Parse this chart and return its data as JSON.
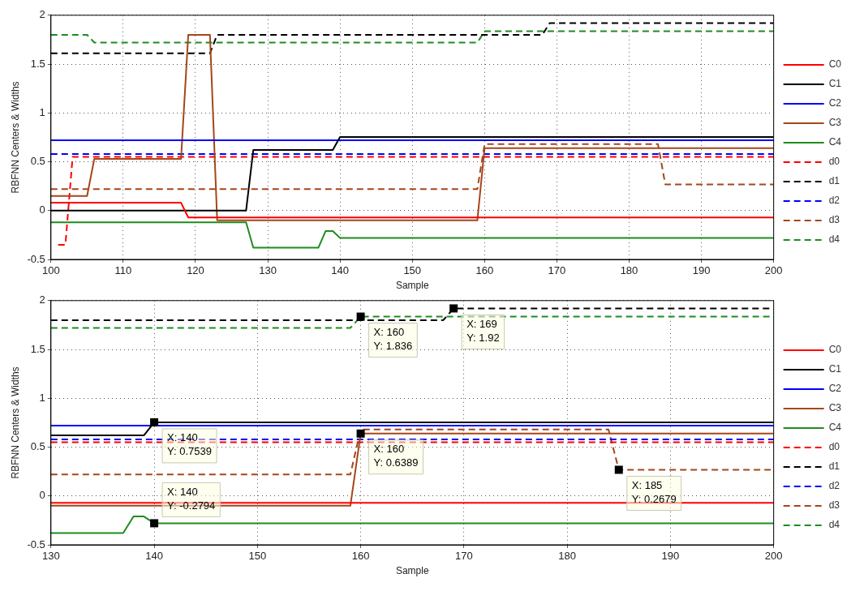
{
  "chart_data": [
    {
      "type": "line",
      "xlabel": "Sample",
      "ylabel": "RBFNN Centers & Widths",
      "xlim": [
        100,
        200
      ],
      "ylim": [
        -0.5,
        2
      ],
      "xticks": [
        100,
        110,
        120,
        130,
        140,
        150,
        160,
        170,
        180,
        190,
        200
      ],
      "yticks": [
        -0.5,
        0,
        0.5,
        1,
        1.5,
        2
      ],
      "grid": true,
      "legend": "right",
      "marker": "none",
      "series": [
        {
          "name": "C0",
          "color": "#ff0000",
          "line_style": "solid",
          "x": [
            100,
            118,
            119,
            200
          ],
          "values": [
            0.08,
            0.08,
            -0.07,
            -0.07
          ]
        },
        {
          "name": "C1",
          "color": "#000000",
          "line_style": "solid",
          "x": [
            100,
            127,
            128,
            139,
            140,
            200
          ],
          "values": [
            0.0,
            0.0,
            0.62,
            0.62,
            0.7539,
            0.7539
          ]
        },
        {
          "name": "C2",
          "color": "#0000ff",
          "line_style": "solid",
          "x": [
            100,
            200
          ],
          "values": [
            0.72,
            0.72
          ]
        },
        {
          "name": "C3",
          "color": "#a5461a",
          "line_style": "solid",
          "x": [
            100,
            105,
            106,
            118,
            119,
            122,
            123,
            159,
            160,
            200
          ],
          "values": [
            0.15,
            0.15,
            0.53,
            0.53,
            1.8,
            1.8,
            -0.1,
            -0.1,
            0.6389,
            0.6389
          ]
        },
        {
          "name": "C4",
          "color": "#1e8c1e",
          "line_style": "solid",
          "x": [
            100,
            127,
            128,
            137,
            138,
            139,
            140,
            200
          ],
          "values": [
            -0.12,
            -0.12,
            -0.38,
            -0.38,
            -0.21,
            -0.21,
            -0.2794,
            -0.2794
          ]
        },
        {
          "name": "d0",
          "color": "#ff0000",
          "line_style": "dashed",
          "x": [
            101,
            102,
            103,
            200
          ],
          "values": [
            -0.35,
            -0.35,
            0.55,
            0.55
          ]
        },
        {
          "name": "d1",
          "color": "#000000",
          "line_style": "dashed",
          "x": [
            100,
            122,
            123,
            168,
            169,
            200
          ],
          "values": [
            1.61,
            1.61,
            1.8,
            1.8,
            1.92,
            1.92
          ]
        },
        {
          "name": "d2",
          "color": "#0000ff",
          "line_style": "dashed",
          "x": [
            100,
            200
          ],
          "values": [
            0.58,
            0.58
          ]
        },
        {
          "name": "d3",
          "color": "#a5461a",
          "line_style": "dashed",
          "x": [
            100,
            159,
            160,
            184,
            185,
            200
          ],
          "values": [
            0.22,
            0.22,
            0.68,
            0.68,
            0.2679,
            0.2679
          ]
        },
        {
          "name": "d4",
          "color": "#1e8c1e",
          "line_style": "dashed",
          "x": [
            100,
            105,
            106,
            159,
            160,
            200
          ],
          "values": [
            1.8,
            1.8,
            1.72,
            1.72,
            1.836,
            1.836
          ]
        }
      ]
    },
    {
      "type": "line",
      "xlabel": "Sample",
      "ylabel": "RBFNN Centers & Widths",
      "xlim": [
        130,
        200
      ],
      "ylim": [
        -0.5,
        2
      ],
      "xticks": [
        130,
        140,
        150,
        160,
        170,
        180,
        190,
        200
      ],
      "yticks": [
        -0.5,
        0,
        0.5,
        1,
        1.5,
        2
      ],
      "grid": true,
      "legend": "right",
      "marker": "none",
      "series": [
        {
          "name": "C0",
          "color": "#ff0000",
          "line_style": "solid",
          "x": [
            130,
            200
          ],
          "values": [
            -0.07,
            -0.07
          ]
        },
        {
          "name": "C1",
          "color": "#000000",
          "line_style": "solid",
          "x": [
            130,
            139,
            140,
            200
          ],
          "values": [
            0.62,
            0.62,
            0.7539,
            0.7539
          ]
        },
        {
          "name": "C2",
          "color": "#0000ff",
          "line_style": "solid",
          "x": [
            130,
            200
          ],
          "values": [
            0.72,
            0.72
          ]
        },
        {
          "name": "C3",
          "color": "#a5461a",
          "line_style": "solid",
          "x": [
            130,
            159,
            160,
            200
          ],
          "values": [
            -0.1,
            -0.1,
            0.6389,
            0.6389
          ]
        },
        {
          "name": "C4",
          "color": "#1e8c1e",
          "line_style": "solid",
          "x": [
            130,
            137,
            138,
            139,
            140,
            200
          ],
          "values": [
            -0.38,
            -0.38,
            -0.21,
            -0.21,
            -0.2794,
            -0.2794
          ]
        },
        {
          "name": "d0",
          "color": "#ff0000",
          "line_style": "dashed",
          "x": [
            130,
            200
          ],
          "values": [
            0.55,
            0.55
          ]
        },
        {
          "name": "d1",
          "color": "#000000",
          "line_style": "dashed",
          "x": [
            130,
            168,
            169,
            200
          ],
          "values": [
            1.8,
            1.8,
            1.92,
            1.92
          ]
        },
        {
          "name": "d2",
          "color": "#0000ff",
          "line_style": "dashed",
          "x": [
            130,
            200
          ],
          "values": [
            0.58,
            0.58
          ]
        },
        {
          "name": "d3",
          "color": "#a5461a",
          "line_style": "dashed",
          "x": [
            130,
            159,
            160,
            184,
            185,
            200
          ],
          "values": [
            0.22,
            0.22,
            0.68,
            0.68,
            0.2679,
            0.2679
          ]
        },
        {
          "name": "d4",
          "color": "#1e8c1e",
          "line_style": "dashed",
          "x": [
            130,
            159,
            160,
            200
          ],
          "values": [
            1.72,
            1.72,
            1.836,
            1.836
          ]
        }
      ],
      "annotations": [
        {
          "text": "X: 140\nY: 0.7539",
          "x": 140,
          "y": 0.7539
        },
        {
          "text": "X: 140\nY: -0.2794",
          "x": 140,
          "y": -0.2794
        },
        {
          "text": "X: 160\nY: 1.836",
          "x": 160,
          "y": 1.836
        },
        {
          "text": "X: 160\nY: 0.6389",
          "x": 160,
          "y": 0.6389
        },
        {
          "text": "X: 169\nY: 1.92",
          "x": 169,
          "y": 1.92
        },
        {
          "text": "X: 185\nY: 0.2679",
          "x": 185,
          "y": 0.2679
        }
      ]
    }
  ]
}
